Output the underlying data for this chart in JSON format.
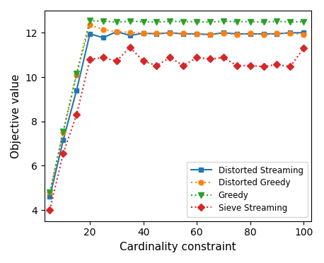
{
  "x": [
    5,
    10,
    15,
    20,
    25,
    30,
    35,
    40,
    45,
    50,
    55,
    60,
    65,
    70,
    75,
    80,
    85,
    90,
    95,
    100
  ],
  "distorted_streaming": [
    4.6,
    7.15,
    9.4,
    11.95,
    11.78,
    12.05,
    11.88,
    11.98,
    11.95,
    12.0,
    11.95,
    11.95,
    11.92,
    12.0,
    11.95,
    11.95,
    11.95,
    11.95,
    12.0,
    12.0
  ],
  "distorted_greedy": [
    4.8,
    7.5,
    10.1,
    12.35,
    12.15,
    12.05,
    12.02,
    11.98,
    11.98,
    11.98,
    11.98,
    11.95,
    11.92,
    11.98,
    11.92,
    11.98,
    11.92,
    11.98,
    11.98,
    11.92
  ],
  "greedy": [
    4.8,
    7.55,
    10.15,
    12.55,
    12.52,
    12.48,
    12.52,
    12.5,
    12.48,
    12.52,
    12.5,
    12.5,
    12.48,
    12.52,
    12.5,
    12.5,
    12.48,
    12.52,
    12.48,
    12.5
  ],
  "sieve_streaming": [
    4.0,
    6.55,
    8.3,
    10.8,
    10.88,
    10.72,
    11.35,
    10.72,
    10.52,
    10.88,
    10.52,
    10.88,
    10.82,
    10.88,
    10.52,
    10.52,
    10.47,
    10.57,
    10.47,
    11.3
  ],
  "color_ds": "#1f77b4",
  "color_dg": "#ff7f0e",
  "color_g": "#2ca02c",
  "color_ss": "#d62728",
  "xlabel": "Cardinality constraint",
  "ylabel": "Objective value",
  "xlim": [
    3,
    103
  ],
  "ylim": [
    3.5,
    13.0
  ],
  "xticks": [
    20,
    40,
    60,
    80,
    100
  ],
  "yticks": [
    4,
    6,
    8,
    10,
    12
  ],
  "legend_labels": [
    "Distorted Streaming",
    "Distorted Greedy",
    "Greedy",
    "Sieve Streaming"
  ]
}
